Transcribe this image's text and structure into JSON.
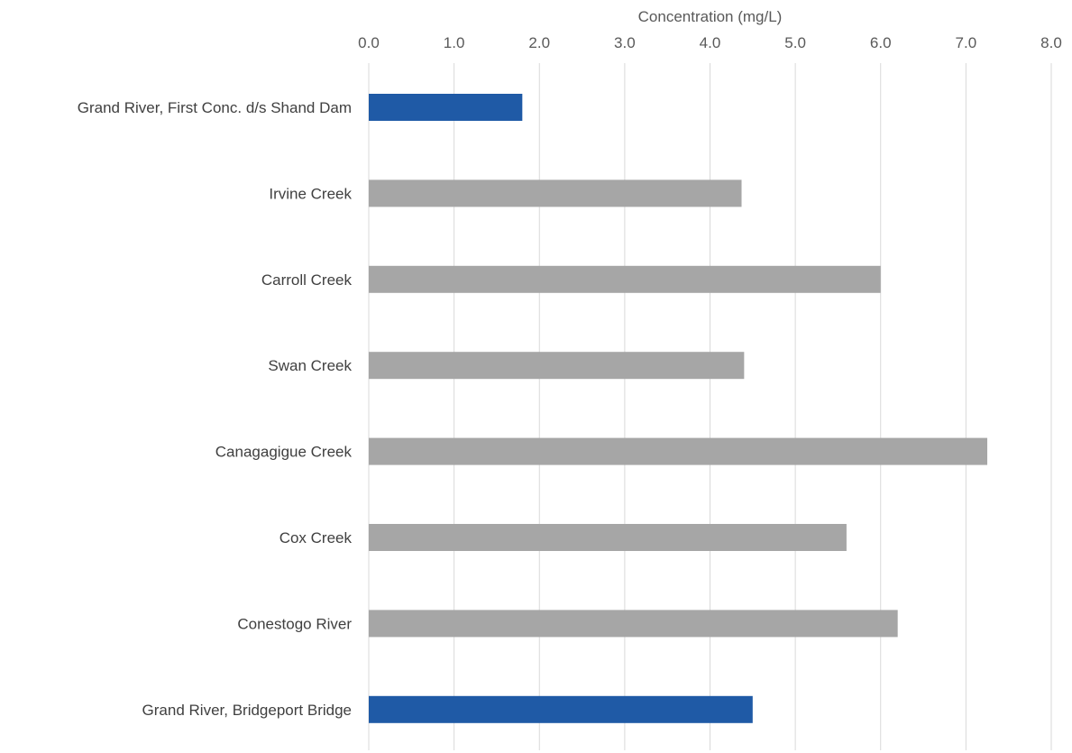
{
  "chart_data": {
    "type": "bar",
    "orientation": "horizontal",
    "xlabel": "Concentration (mg/L)",
    "xaxis_position": "top",
    "xlim": [
      0,
      8
    ],
    "xticks": [
      "0.0",
      "1.0",
      "2.0",
      "3.0",
      "4.0",
      "5.0",
      "6.0",
      "7.0",
      "8.0"
    ],
    "grid": "vertical",
    "legend": "none",
    "categories": [
      "Grand River, First Conc. d/s Shand Dam",
      "Irvine Creek",
      "Carroll Creek",
      "Swan Creek",
      "Canagagigue Creek",
      "Cox Creek",
      "Conestogo River",
      "Grand River, Bridgeport Bridge"
    ],
    "values": [
      1.8,
      4.37,
      6.0,
      4.4,
      7.25,
      5.6,
      6.2,
      4.5
    ],
    "bar_colors": [
      "#1f5aa6",
      "#a6a6a6",
      "#a6a6a6",
      "#a6a6a6",
      "#a6a6a6",
      "#a6a6a6",
      "#a6a6a6",
      "#1f5aa6"
    ]
  },
  "colors": {
    "highlight": "#1f5aa6",
    "default": "#a6a6a6",
    "grid": "#d9d9d9",
    "text": "#595959"
  }
}
